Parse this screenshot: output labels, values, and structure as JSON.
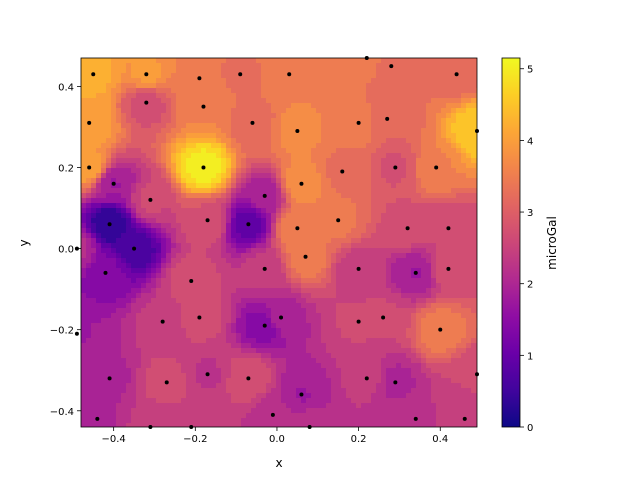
{
  "chart_data": {
    "type": "tricontourf",
    "xlabel": "x",
    "ylabel": "y",
    "colorbar_label": "microGal",
    "colormap": "plasma",
    "xlim": [
      -0.48,
      0.49
    ],
    "ylim": [
      -0.44,
      0.47
    ],
    "clim": [
      0,
      5.15
    ],
    "x_ticks": [
      -0.4,
      -0.2,
      0.0,
      0.2,
      0.4
    ],
    "x_tick_labels": [
      "−0.4",
      "−0.2",
      "0.0",
      "0.2",
      "0.4"
    ],
    "y_ticks": [
      -0.4,
      -0.2,
      0.0,
      0.2,
      0.4
    ],
    "y_tick_labels": [
      "−0.4",
      "−0.2",
      "0.0",
      "0.2",
      "0.4"
    ],
    "colorbar_ticks": [
      0,
      1,
      2,
      3,
      4,
      5
    ],
    "colorbar_tick_labels": [
      "0",
      "1",
      "2",
      "3",
      "4",
      "5"
    ],
    "points": [
      {
        "x": -0.45,
        "y": 0.43,
        "v": 4.2
      },
      {
        "x": -0.32,
        "y": 0.43,
        "v": 3.9
      },
      {
        "x": -0.19,
        "y": 0.42,
        "v": 3.5
      },
      {
        "x": -0.09,
        "y": 0.43,
        "v": 3.3
      },
      {
        "x": 0.03,
        "y": 0.43,
        "v": 3.6
      },
      {
        "x": 0.22,
        "y": 0.47,
        "v": 3.4
      },
      {
        "x": 0.28,
        "y": 0.45,
        "v": 3.3
      },
      {
        "x": 0.44,
        "y": 0.43,
        "v": 3.2
      },
      {
        "x": -0.46,
        "y": 0.31,
        "v": 4.1
      },
      {
        "x": -0.32,
        "y": 0.36,
        "v": 2.7
      },
      {
        "x": -0.18,
        "y": 0.35,
        "v": 3.6
      },
      {
        "x": -0.06,
        "y": 0.31,
        "v": 3.2
      },
      {
        "x": 0.05,
        "y": 0.29,
        "v": 3.7
      },
      {
        "x": 0.2,
        "y": 0.31,
        "v": 3.5
      },
      {
        "x": 0.27,
        "y": 0.32,
        "v": 3.1
      },
      {
        "x": 0.49,
        "y": 0.29,
        "v": 4.6
      },
      {
        "x": -0.46,
        "y": 0.2,
        "v": 4.0
      },
      {
        "x": -0.18,
        "y": 0.2,
        "v": 5.0
      },
      {
        "x": 0.06,
        "y": 0.16,
        "v": 3.8
      },
      {
        "x": 0.16,
        "y": 0.19,
        "v": 3.3
      },
      {
        "x": 0.29,
        "y": 0.2,
        "v": 2.8
      },
      {
        "x": 0.39,
        "y": 0.2,
        "v": 3.6
      },
      {
        "x": -0.4,
        "y": 0.16,
        "v": 1.8
      },
      {
        "x": -0.31,
        "y": 0.12,
        "v": 2.6
      },
      {
        "x": -0.03,
        "y": 0.13,
        "v": 1.9
      },
      {
        "x": -0.17,
        "y": 0.07,
        "v": 2.8
      },
      {
        "x": 0.15,
        "y": 0.07,
        "v": 3.4
      },
      {
        "x": -0.41,
        "y": 0.06,
        "v": 0.3
      },
      {
        "x": -0.07,
        "y": 0.06,
        "v": 0.9
      },
      {
        "x": 0.05,
        "y": 0.05,
        "v": 3.6
      },
      {
        "x": 0.32,
        "y": 0.05,
        "v": 2.7
      },
      {
        "x": 0.42,
        "y": 0.05,
        "v": 2.6
      },
      {
        "x": -0.35,
        "y": 0.0,
        "v": 0.6
      },
      {
        "x": 0.07,
        "y": -0.02,
        "v": 3.5
      },
      {
        "x": -0.03,
        "y": -0.05,
        "v": 2.4
      },
      {
        "x": 0.2,
        "y": -0.05,
        "v": 2.4
      },
      {
        "x": 0.42,
        "y": -0.05,
        "v": 2.7
      },
      {
        "x": -0.42,
        "y": -0.06,
        "v": 1.4
      },
      {
        "x": 0.34,
        "y": -0.06,
        "v": 1.8
      },
      {
        "x": -0.21,
        "y": -0.08,
        "v": 2.7
      },
      {
        "x": -0.28,
        "y": -0.18,
        "v": 2.4
      },
      {
        "x": -0.19,
        "y": -0.17,
        "v": 2.7
      },
      {
        "x": 0.01,
        "y": -0.17,
        "v": 2.0
      },
      {
        "x": 0.2,
        "y": -0.18,
        "v": 2.6
      },
      {
        "x": 0.26,
        "y": -0.17,
        "v": 2.6
      },
      {
        "x": -0.03,
        "y": -0.19,
        "v": 1.4
      },
      {
        "x": 0.4,
        "y": -0.2,
        "v": 3.5
      },
      {
        "x": -0.41,
        "y": -0.32,
        "v": 2.0
      },
      {
        "x": -0.27,
        "y": -0.33,
        "v": 2.7
      },
      {
        "x": -0.17,
        "y": -0.31,
        "v": 2.3
      },
      {
        "x": -0.07,
        "y": -0.32,
        "v": 2.8
      },
      {
        "x": 0.22,
        "y": -0.32,
        "v": 2.4
      },
      {
        "x": 0.29,
        "y": -0.33,
        "v": 2.0
      },
      {
        "x": 0.49,
        "y": -0.31,
        "v": 2.6
      },
      {
        "x": 0.06,
        "y": -0.36,
        "v": 1.8
      },
      {
        "x": -0.44,
        "y": -0.42,
        "v": 2.0
      },
      {
        "x": -0.01,
        "y": -0.41,
        "v": 2.2
      },
      {
        "x": 0.34,
        "y": -0.42,
        "v": 2.3
      },
      {
        "x": 0.46,
        "y": -0.42,
        "v": 2.4
      },
      {
        "x": -0.31,
        "y": -0.44,
        "v": 2.4
      },
      {
        "x": -0.21,
        "y": -0.44,
        "v": 2.4
      },
      {
        "x": 0.08,
        "y": -0.44,
        "v": 2.3
      },
      {
        "x": -0.49,
        "y": -0.21,
        "v": 1.8
      },
      {
        "x": -0.49,
        "y": 0.0,
        "v": 2.1
      }
    ]
  }
}
